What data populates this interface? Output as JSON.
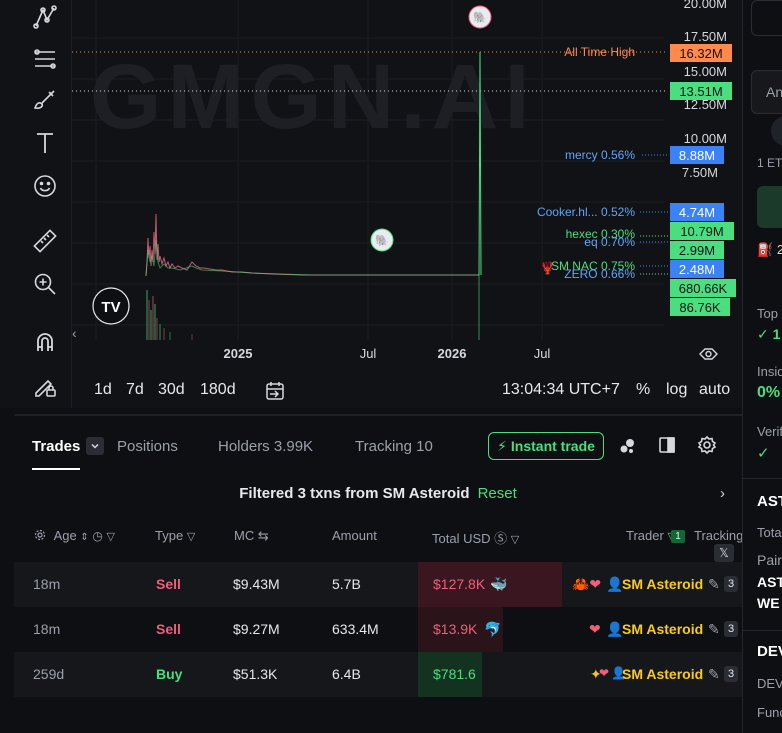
{
  "toolbar": {
    "tools": [
      {
        "name": "trend-line-icon"
      },
      {
        "name": "fib-retracement-icon"
      },
      {
        "name": "brush-icon"
      },
      {
        "name": "text-icon"
      },
      {
        "name": "emoji-icon"
      },
      {
        "name": "ruler-icon"
      },
      {
        "name": "zoom-in-icon"
      },
      {
        "name": "magnet-icon"
      },
      {
        "name": "lock-drawings-icon"
      }
    ]
  },
  "chart": {
    "watermark": "GMGN.AI",
    "price_labels": [
      "20.00M",
      "17.50M",
      "15.00M",
      "12.50M",
      "10.00M",
      "7.50M"
    ],
    "x_labels": [
      "2025",
      "Jul",
      "2026",
      "Jul"
    ],
    "lines": {
      "ath": {
        "label": "All Time High",
        "value": "16.32M",
        "color": "#ff8a4c"
      },
      "current": {
        "value": "13.51M",
        "color": "#4ade80"
      }
    },
    "markers": [
      {
        "label": "mercy 0.56%",
        "value": "8.88M",
        "color": "#3b82f6"
      },
      {
        "label": "Cooker.hl... 0.52%",
        "value": "4.74M",
        "color": "#3b82f6"
      },
      {
        "label": "hexec 0.30%",
        "value": "10.79M",
        "color": "#4ade80"
      },
      {
        "label": "eq 0.70%",
        "value": "2.99M",
        "color": "#4ade80"
      },
      {
        "label": "SM NAC 0.75%",
        "value": "2.48M",
        "color": "#3b82f6"
      },
      {
        "label": "ZERO 0.66%",
        "value": "680.66K",
        "color": "#4ade80"
      },
      {
        "label": "",
        "value": "86.76K",
        "color": "#4ade80"
      }
    ]
  },
  "bottom_bar": {
    "timeframes": [
      "1d",
      "7d",
      "30d",
      "180d"
    ],
    "clock": "13:04:34 UTC+7",
    "pct": "%",
    "log": "log",
    "auto": "auto"
  },
  "tabs": {
    "trades": "Trades",
    "positions": "Positions",
    "holders": "Holders 3.99K",
    "tracking": "Tracking 10",
    "instant_trade": "Instant trade"
  },
  "filter": {
    "text": "Filtered 3 txns from SM Asteroid",
    "reset": "Reset"
  },
  "table": {
    "headers": {
      "age": "Age",
      "type": "Type",
      "mc": "MC",
      "amount": "Amount",
      "total_usd": "Total USD",
      "trader": "Trader",
      "tracking": "Tracking",
      "tracking_count": "1"
    },
    "rows": [
      {
        "age": "18m",
        "type": "Sell",
        "mc": "$9.43M",
        "amount": "5.7B",
        "total": "$127.8K",
        "trader": "SM Asteroid",
        "count": "3"
      },
      {
        "age": "18m",
        "type": "Sell",
        "mc": "$9.27M",
        "amount": "633.4M",
        "total": "$13.9K",
        "trader": "SM Asteroid",
        "count": "3"
      },
      {
        "age": "259d",
        "type": "Buy",
        "mc": "$51.3K",
        "amount": "6.4B",
        "total": "$781.6",
        "trader": "SM Asteroid",
        "count": "3"
      }
    ]
  },
  "right_panel": {
    "an": "An",
    "eth": "1 ET",
    "two": "2",
    "top": "Top",
    "top_val": "1",
    "insider": "Insid",
    "insider_val": "0%",
    "verified": "Verif",
    "ast": "AST",
    "total": "Tota",
    "pair": "Pair",
    "ast2": "AST",
    "we": "WE",
    "dev": "DEV",
    "dev2": "DEV",
    "func": "Func"
  }
}
